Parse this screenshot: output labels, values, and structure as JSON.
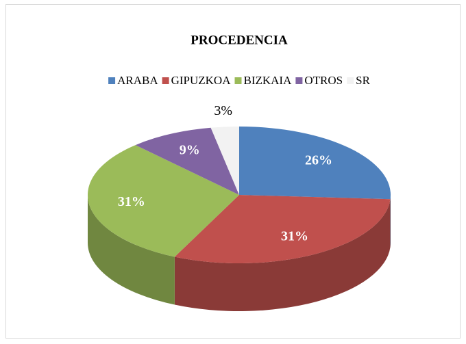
{
  "chart_data": {
    "type": "pie",
    "title": "PROCEDENCIA",
    "categories": [
      "ARABA",
      "GIPUZKOA",
      "BIZKAIA",
      "OTROS",
      "SR"
    ],
    "values": [
      26,
      31,
      31,
      9,
      3
    ],
    "value_labels": [
      "26%",
      "31%",
      "31%",
      "9%",
      "3%"
    ],
    "colors": [
      "#4f81bd",
      "#c0504d",
      "#9bbb59",
      "#8064a2",
      "#f2f2f2"
    ],
    "legend": "top"
  }
}
